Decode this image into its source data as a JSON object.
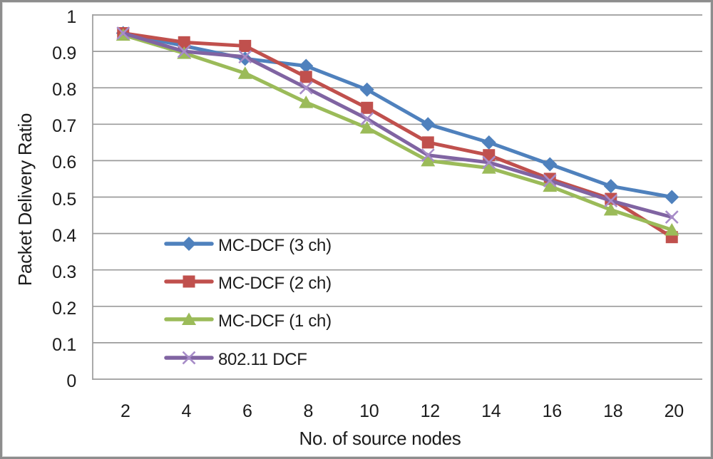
{
  "chart_data": {
    "type": "line",
    "title": "",
    "xlabel": "No. of source nodes",
    "ylabel": "Packet Delivery Ratio",
    "categories": [
      2,
      4,
      6,
      8,
      10,
      12,
      14,
      16,
      18,
      20
    ],
    "xtick_labels": [
      "2",
      "4",
      "6",
      "8",
      "10",
      "12",
      "14",
      "16",
      "18",
      "20"
    ],
    "ylim": [
      0,
      1
    ],
    "ytick_step": 0.1,
    "ytick_labels": [
      "0",
      "0.1",
      "0.2",
      "0.3",
      "0.4",
      "0.5",
      "0.6",
      "0.7",
      "0.8",
      "0.9",
      "1"
    ],
    "grid": true,
    "legend_position": "inside-lower-left",
    "series": [
      {
        "name": "MC-DCF (3 ch)",
        "color": "#4F81BD",
        "marker": "diamond",
        "values": [
          0.95,
          0.915,
          0.88,
          0.86,
          0.795,
          0.7,
          0.65,
          0.59,
          0.53,
          0.5
        ]
      },
      {
        "name": "MC-DCF (2 ch)",
        "color": "#C0504D",
        "marker": "square",
        "values": [
          0.95,
          0.925,
          0.915,
          0.83,
          0.745,
          0.65,
          0.615,
          0.55,
          0.495,
          0.39
        ]
      },
      {
        "name": "MC-DCF (1 ch)",
        "color": "#9BBB59",
        "marker": "triangle",
        "values": [
          0.945,
          0.895,
          0.84,
          0.76,
          0.69,
          0.6,
          0.58,
          0.53,
          0.465,
          0.41
        ]
      },
      {
        "name": "802.11 DCF",
        "color": "#8064A2",
        "marker": "x",
        "marker_color": "#A78CC8",
        "values": [
          0.95,
          0.9,
          0.885,
          0.8,
          0.715,
          0.615,
          0.595,
          0.545,
          0.49,
          0.445
        ]
      }
    ],
    "colors": {
      "gridline": "#9b9b9b",
      "axis_line": "#9b9b9b",
      "text": "#1c1c1c",
      "background": "#ffffff",
      "frame_border": "#8d8d8d"
    }
  }
}
